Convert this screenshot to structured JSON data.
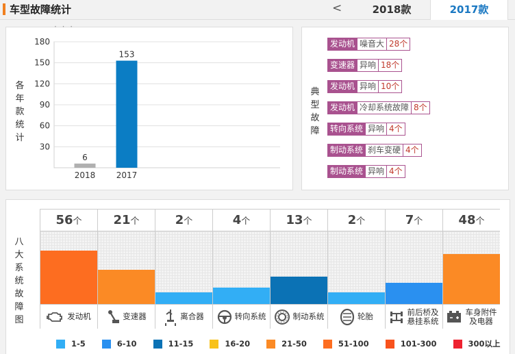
{
  "header": {
    "title": "车型故障统计",
    "prev_arrow": "<",
    "tabs": [
      "2018款",
      "2017款"
    ],
    "active_tab": "2017款",
    "next_arrow": ""
  },
  "yearly_panel": {
    "side_label": [
      "各",
      "年",
      "款",
      "统",
      "计"
    ],
    "partial_top_text": "· · ·"
  },
  "chart_data": {
    "type": "bar",
    "categories": [
      "2018",
      "2017"
    ],
    "values": [
      6,
      153
    ],
    "title": "",
    "xlabel": "",
    "ylabel": "",
    "ylim": [
      0,
      180
    ],
    "yticks": [
      30,
      60,
      90,
      120,
      150,
      180
    ],
    "colors": [
      "#b0b0b0",
      "#0b7dc4"
    ],
    "grid": true
  },
  "typical_panel": {
    "side_label": [
      "典",
      "型",
      "故",
      "障"
    ],
    "tags": [
      {
        "system": "发动机",
        "fault": "噪音大",
        "count": "28个"
      },
      {
        "system": "变速器",
        "fault": "异响",
        "count": "18个"
      },
      {
        "system": "发动机",
        "fault": "异响",
        "count": "10个"
      },
      {
        "system": "发动机",
        "fault": "冷却系统故障",
        "count": "8个"
      },
      {
        "system": "转向系统",
        "fault": "异响",
        "count": "4个"
      },
      {
        "system": "制动系统",
        "fault": "刹车变硬",
        "count": "4个"
      },
      {
        "system": "制动系统",
        "fault": "异响",
        "count": "4个"
      }
    ]
  },
  "systems_panel": {
    "side_label": [
      "八",
      "大",
      "系",
      "统",
      "故",
      "障",
      "图"
    ],
    "unit": "个",
    "max_value": 56,
    "systems": [
      {
        "count": "56",
        "value": 56,
        "label": "发动机",
        "icon": "engine-icon",
        "color": "#fd6d20"
      },
      {
        "count": "21",
        "value": 21,
        "label": "变速器",
        "icon": "gearshift-icon",
        "color": "#fb8a25"
      },
      {
        "count": "2",
        "value": 2,
        "label": "离合器",
        "icon": "clutch-pedal-icon",
        "color": "#32aef5"
      },
      {
        "count": "4",
        "value": 4,
        "label": "转向系统",
        "icon": "steering-wheel-icon",
        "color": "#32aef5"
      },
      {
        "count": "13",
        "value": 13,
        "label": "制动系统",
        "icon": "brake-disc-icon",
        "color": "#0b72b5"
      },
      {
        "count": "2",
        "value": 2,
        "label": "轮胎",
        "icon": "tire-icon",
        "color": "#32aef5"
      },
      {
        "count": "7",
        "value": 7,
        "label": "前后桥及悬挂系统",
        "icon": "axle-icon",
        "color": "#2a90f0"
      },
      {
        "count": "48",
        "value": 48,
        "label": "车身附件及电器",
        "icon": "battery-icon",
        "color": "#fb8a25"
      }
    ]
  },
  "legend": [
    {
      "label": "1-5",
      "color": "#32aef5"
    },
    {
      "label": "6-10",
      "color": "#2a90f0"
    },
    {
      "label": "11-15",
      "color": "#0b72b5"
    },
    {
      "label": "16-20",
      "color": "#f8c21a"
    },
    {
      "label": "21-50",
      "color": "#fb8a25"
    },
    {
      "label": "51-100",
      "color": "#fd6d20"
    },
    {
      "label": "101-300",
      "color": "#f8521c"
    },
    {
      "label": "300以上",
      "color": "#ee2230"
    }
  ]
}
